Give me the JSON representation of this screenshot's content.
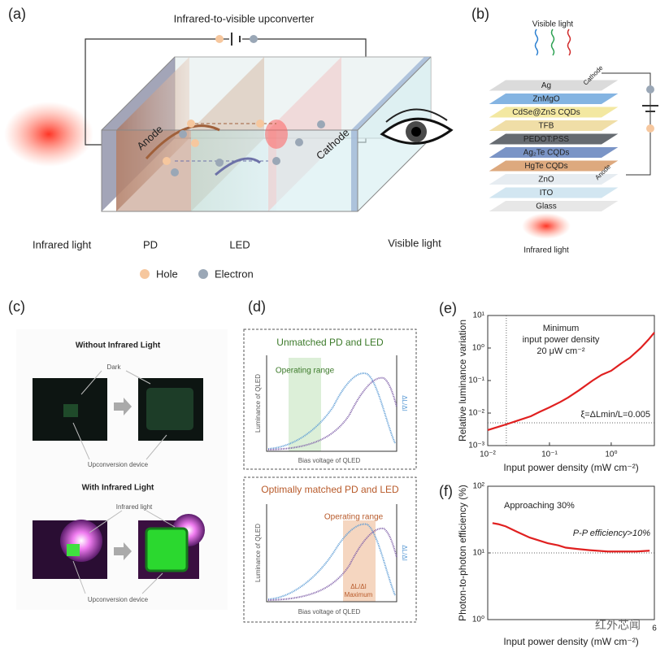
{
  "panels": {
    "a": {
      "label": "(a)",
      "title": "Infrared-to-visible upconverter",
      "anode": "Anode",
      "cathode": "Cathode",
      "infrared": "Infrared light",
      "pd": "PD",
      "led": "LED",
      "visible": "Visible light",
      "hole": "Hole",
      "electron": "Electron"
    },
    "b": {
      "label": "(b)",
      "visible": "Visible light",
      "cathode": "Cathode",
      "anode": "Anode",
      "infrared": "Infrared light",
      "layers": [
        "Ag",
        "ZnMgO",
        "CdSe@ZnS CQDs",
        "TFB",
        "PEDOT:PSS",
        "Ag₂Te CQDs",
        "HgTe CQDs",
        "ZnO",
        "ITO",
        "Glass"
      ]
    },
    "c": {
      "label": "(c)",
      "without": "Without Infrared Light",
      "dark": "Dark",
      "device1": "Upconversion device",
      "with": "With Infrared Light",
      "ir": "Infrared light",
      "device2": "Upconversion device"
    },
    "d": {
      "label": "(d)",
      "top_title": "Unmatched PD and LED",
      "top_range": "Operating range",
      "top_ylabel": "Luminance of QLED",
      "top_y2label": "ΔL/ΔI",
      "top_xlabel": "Bias voltage of QLED",
      "bottom_title": "Optimally matched PD and LED",
      "bottom_range": "Operating range",
      "bottom_ylabel": "Luminance of QLED",
      "bottom_y2label": "ΔL/ΔI",
      "bottom_peak": "ΔL/ΔI",
      "bottom_max": "Maximum",
      "bottom_xlabel": "Bias voltage of QLED"
    }
  },
  "watermark": "红外芯闻",
  "chart_data": [
    {
      "type": "line",
      "title": "(e)",
      "xlabel": "Input power density (mW cm⁻²)",
      "ylabel": "Relative luminance variation",
      "xscale": "log",
      "yscale": "log",
      "xlim": [
        0.01,
        5
      ],
      "ylim": [
        0.001,
        10
      ],
      "xticks": [
        {
          "value": 0.01,
          "label": "10⁻²"
        },
        {
          "value": 0.1,
          "label": "10⁻¹"
        },
        {
          "value": 1,
          "label": "10⁰"
        }
      ],
      "yticks": [
        {
          "value": 0.001,
          "label": "10⁻³"
        },
        {
          "value": 0.01,
          "label": "10⁻²"
        },
        {
          "value": 0.1,
          "label": "10⁻¹"
        },
        {
          "value": 1,
          "label": "10⁰"
        },
        {
          "value": 10,
          "label": "10¹"
        }
      ],
      "x": [
        0.01,
        0.015,
        0.02,
        0.03,
        0.05,
        0.07,
        0.1,
        0.15,
        0.2,
        0.3,
        0.5,
        0.7,
        1,
        1.5,
        2,
        3,
        4,
        5
      ],
      "series": [
        {
          "color": "#e02020",
          "values": [
            0.003,
            0.0038,
            0.0045,
            0.0058,
            0.008,
            0.011,
            0.015,
            0.022,
            0.03,
            0.05,
            0.1,
            0.15,
            0.2,
            0.35,
            0.5,
            1,
            1.8,
            3
          ]
        }
      ],
      "vline": 0.02,
      "hline": 0.005,
      "annotations": [
        "Minimum",
        "input power density",
        "20 μW cm⁻²",
        "ξ=ΔLmin/L=0.005"
      ]
    },
    {
      "type": "line",
      "title": "(f)",
      "xlabel": "Input power density (mW cm⁻²)",
      "ylabel": "Photon-to-photon efficiency (%)",
      "xscale": "log",
      "yscale": "log",
      "xlim": [
        0.01,
        6
      ],
      "ylim": [
        1,
        100
      ],
      "xticks": [
        6
      ],
      "yticks": [
        {
          "value": 1,
          "label": "10⁰"
        },
        {
          "value": 10,
          "label": "10¹"
        },
        {
          "value": 100,
          "label": "10²"
        }
      ],
      "x": [
        0.012,
        0.015,
        0.02,
        0.03,
        0.05,
        0.1,
        0.15,
        0.2,
        0.3,
        0.5,
        1,
        2,
        3,
        5
      ],
      "series": [
        {
          "color": "#e02020",
          "values": [
            28,
            27,
            25,
            21,
            17,
            14,
            13,
            12,
            11.5,
            11,
            10.5,
            10.5,
            10.5,
            10.8
          ]
        }
      ],
      "hline": 10,
      "annotations": [
        "Approaching 30%",
        "P-P efficiency>10%"
      ]
    }
  ]
}
